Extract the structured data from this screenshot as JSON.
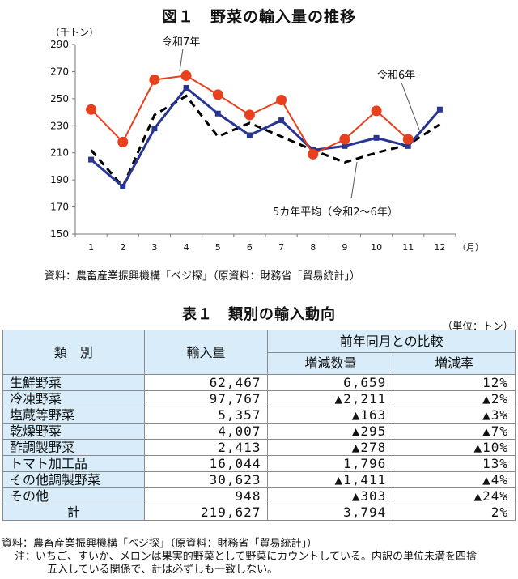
{
  "figure": {
    "title": "図１　野菜の輸入量の推移",
    "source": "資料：農畜産業振興機構「ベジ探」（原資料：財務省「貿易統計」）"
  },
  "chart_data": {
    "type": "line",
    "title": "図１　野菜の輸入量の推移",
    "ylabel": "（千トン）",
    "xlabel": "（月）",
    "ylim": [
      150,
      290
    ],
    "yticks": [
      150,
      170,
      190,
      210,
      230,
      250,
      270,
      290
    ],
    "categories": [
      "1",
      "2",
      "3",
      "4",
      "5",
      "6",
      "7",
      "8",
      "9",
      "10",
      "11",
      "12"
    ],
    "grid": false,
    "series": [
      {
        "name": "令和7年",
        "color": "#e8401c",
        "marker": "circle",
        "values": [
          242,
          218,
          264,
          267,
          253,
          238,
          249,
          209,
          220,
          241,
          220,
          null
        ]
      },
      {
        "name": "令和6年",
        "color": "#283593",
        "marker": "square",
        "values": [
          205,
          185,
          228,
          258,
          239,
          223,
          234,
          212,
          215,
          221,
          215,
          242
        ]
      },
      {
        "name": "5カ年平均（令和2～6年）",
        "color": "#000000",
        "marker": "none",
        "dashed": true,
        "values": [
          212,
          185,
          238,
          252,
          222,
          232,
          222,
          212,
          203,
          210,
          216,
          231
        ]
      }
    ],
    "annotations": [
      {
        "text": "令和7年",
        "series": 0
      },
      {
        "text": "令和6年",
        "series": 1
      },
      {
        "text": "5カ年平均（令和2～6年）",
        "series": 2
      }
    ]
  },
  "table": {
    "title": "表１　類別の輸入動向",
    "unit": "（単位：トン）",
    "headers": {
      "category": "類　別",
      "imports": "輸入量",
      "comparison": "前年同月との比較",
      "change_qty": "増減数量",
      "change_rate": "増減率"
    },
    "rows": [
      {
        "category": "生鮮野菜",
        "imports": "62,467",
        "change_qty": "6,659",
        "change_rate": "12%"
      },
      {
        "category": "冷凍野菜",
        "imports": "97,767",
        "change_qty": "▲2,211",
        "change_rate": "▲2%"
      },
      {
        "category": "塩蔵等野菜",
        "imports": "5,357",
        "change_qty": "▲163",
        "change_rate": "▲3%"
      },
      {
        "category": "乾燥野菜",
        "imports": "4,007",
        "change_qty": "▲295",
        "change_rate": "▲7%"
      },
      {
        "category": "酢調製野菜",
        "imports": "2,413",
        "change_qty": "▲278",
        "change_rate": "▲10%"
      },
      {
        "category": "トマト加工品",
        "imports": "16,044",
        "change_qty": "1,796",
        "change_rate": "13%"
      },
      {
        "category": "その他調製野菜",
        "imports": "30,623",
        "change_qty": "▲1,411",
        "change_rate": "▲4%"
      },
      {
        "category": "その他",
        "imports": "948",
        "change_qty": "▲303",
        "change_rate": "▲24%"
      }
    ],
    "total": {
      "category": "計",
      "imports": "219,627",
      "change_qty": "3,794",
      "change_rate": "2%"
    }
  },
  "notes": {
    "source": "資料：農畜産業振興機構「ベジ探」（原資料：財務省「貿易統計」）",
    "note_line1": "注：いちご、すいか、メロンは果実的野菜として野菜にカウントしている。内訳の単位未満を四捨",
    "note_line2": "五入している関係で、計は必ずしも一致しない。"
  }
}
